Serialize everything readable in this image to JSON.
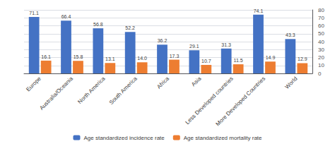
{
  "chart_data": {
    "type": "bar",
    "categories": [
      "Europe",
      "Australia/Oceania",
      "North America",
      "South America",
      "Africa",
      "Asia",
      "Less Developed countries",
      "More Developed Countries",
      "World"
    ],
    "series": [
      {
        "name": "Age standardized incidence rate",
        "color": "#4472C4",
        "values": [
          71.1,
          66.4,
          56.8,
          52.2,
          36.2,
          29.1,
          31.3,
          74.1,
          43.3
        ],
        "value_labels": [
          "71.1",
          "66.4",
          "56.8",
          "52.2",
          "36.2",
          "29.1",
          "31.3",
          "74.1",
          "43.3"
        ]
      },
      {
        "name": "Age standardized mortality rate",
        "color": "#ED7D31",
        "values": [
          16.1,
          15.8,
          13.1,
          14.0,
          17.3,
          10.7,
          11.5,
          14.9,
          12.9
        ],
        "value_labels": [
          "16.1",
          "15.8",
          "13.1",
          "14.0",
          "17.3",
          "10.7",
          "11.5",
          "14.9",
          "12.9"
        ]
      }
    ],
    "ylim": [
      0,
      80
    ],
    "yticks": [
      0,
      10,
      20,
      30,
      40,
      50,
      60,
      70,
      80
    ],
    "grid": true,
    "legend": "bottom",
    "data_labels": true
  }
}
